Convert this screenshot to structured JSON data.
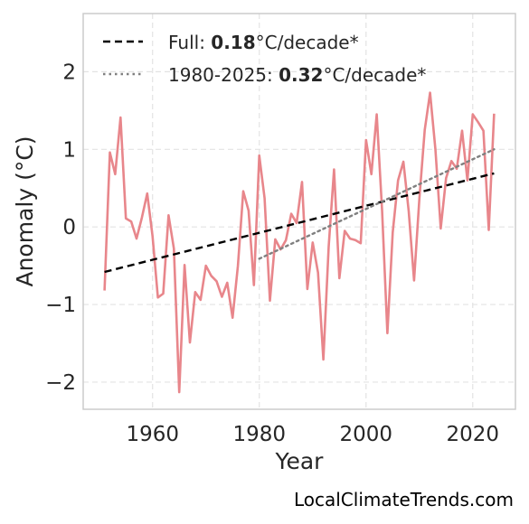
{
  "chart_data": {
    "type": "line",
    "xlabel": "Year",
    "ylabel": "Anomaly (°C)",
    "xlim": [
      1947,
      2028
    ],
    "ylim": [
      -2.35,
      2.75
    ],
    "xticks": [
      1960,
      1980,
      2000,
      2020
    ],
    "yticks": [
      -2,
      -1,
      0,
      1,
      2
    ],
    "ytick_labels": [
      "−2",
      "−1",
      "0",
      "1",
      "2"
    ],
    "grid": true,
    "legend_position": "top-left",
    "series": [
      {
        "color": "#e8868b",
        "style": "solid",
        "x": [
          1951,
          1952,
          1953,
          1954,
          1955,
          1956,
          1957,
          1958,
          1959,
          1960,
          1961,
          1962,
          1963,
          1964,
          1965,
          1966,
          1967,
          1968,
          1969,
          1970,
          1971,
          1972,
          1973,
          1974,
          1975,
          1976,
          1977,
          1978,
          1979,
          1980,
          1981,
          1982,
          1983,
          1984,
          1985,
          1986,
          1987,
          1988,
          1989,
          1990,
          1991,
          1992,
          1993,
          1994,
          1995,
          1996,
          1997,
          1998,
          1999,
          2000,
          2001,
          2002,
          2003,
          2004,
          2005,
          2006,
          2007,
          2008,
          2009,
          2010,
          2011,
          2012,
          2013,
          2014,
          2015,
          2016,
          2017,
          2018,
          2019,
          2020,
          2021,
          2022,
          2023,
          2024
        ],
        "y": [
          -0.82,
          0.96,
          0.68,
          1.41,
          0.11,
          0.07,
          -0.15,
          0.12,
          0.43,
          -0.12,
          -0.91,
          -0.86,
          0.15,
          -0.28,
          -2.13,
          -0.49,
          -1.49,
          -0.84,
          -0.94,
          -0.5,
          -0.63,
          -0.7,
          -0.9,
          -0.72,
          -1.17,
          -0.5,
          0.46,
          0.21,
          -0.75,
          0.92,
          0.37,
          -0.95,
          -0.16,
          -0.29,
          -0.17,
          0.17,
          0.05,
          0.58,
          -0.8,
          -0.2,
          -0.59,
          -1.71,
          -0.25,
          0.74,
          -0.66,
          -0.05,
          -0.15,
          -0.17,
          -0.21,
          1.12,
          0.68,
          1.45,
          0.22,
          -1.37,
          -0.07,
          0.6,
          0.84,
          0.2,
          -0.69,
          0.37,
          1.25,
          1.73,
          1.0,
          -0.02,
          0.63,
          0.85,
          0.75,
          1.24,
          0.6,
          1.45,
          1.35,
          1.24,
          -0.04,
          1.46
        ]
      },
      {
        "name": "Full: 0.18°C/decade*",
        "color": "#000000",
        "style": "dashed",
        "x": [
          1951,
          2024
        ],
        "y": [
          -0.58,
          0.69
        ]
      },
      {
        "name": "1980-2025: 0.32°C/decade*",
        "color": "#808080",
        "style": "dotted",
        "x": [
          1980,
          2024
        ],
        "y": [
          -0.41,
          1.0
        ]
      }
    ]
  },
  "legend": {
    "items": [
      {
        "prefix": "Full: ",
        "bold": "0.18",
        "suffix": "°C/decade*"
      },
      {
        "prefix": "1980-2025: ",
        "bold": "0.32",
        "suffix": "°C/decade*"
      }
    ]
  },
  "credit": "LocalClimateTrends.com"
}
